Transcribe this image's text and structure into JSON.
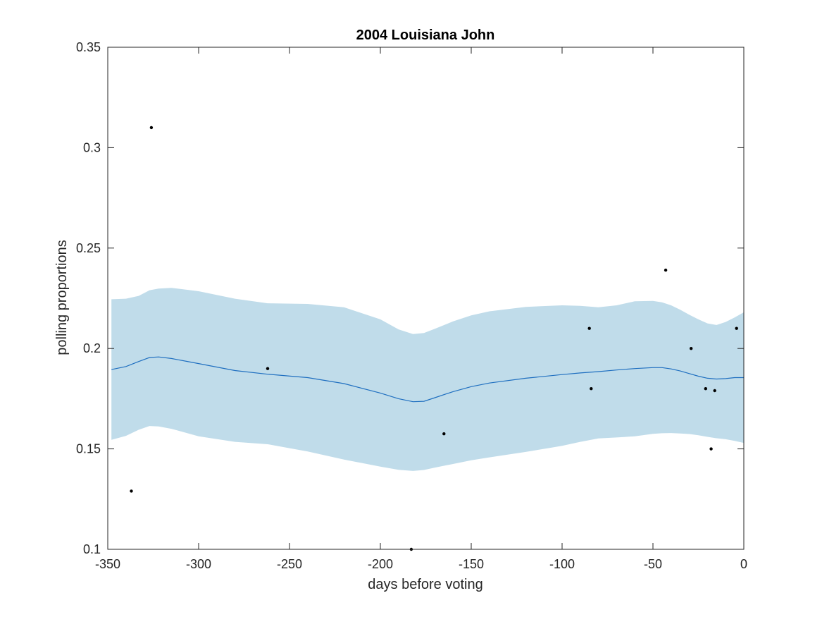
{
  "chart_data": {
    "type": "line",
    "title": "2004 Louisiana John",
    "xlabel": "days before voting",
    "ylabel": "polling proportions",
    "xlim": [
      -350,
      0
    ],
    "ylim": [
      0.1,
      0.35
    ],
    "xticks": [
      "-350",
      "-300",
      "-250",
      "-200",
      "-150",
      "-100",
      "-50",
      "0"
    ],
    "yticks": [
      "0.1",
      "0.15",
      "0.2",
      "0.25",
      "0.3",
      "0.35"
    ],
    "grid": false,
    "colors": {
      "band": "#c0dcea",
      "line": "#1f6fc0",
      "points": "#000000",
      "axis": "#262626"
    },
    "mean_curve": {
      "x": [
        -348,
        -340,
        -333,
        -327,
        -322,
        -315,
        -300,
        -280,
        -262,
        -240,
        -220,
        -200,
        -190,
        -182,
        -176,
        -170,
        -160,
        -150,
        -140,
        -120,
        -100,
        -90,
        -80,
        -70,
        -60,
        -50,
        -45,
        -40,
        -35,
        -30,
        -25,
        -20,
        -15,
        -10,
        -5,
        0
      ],
      "y": [
        0.1895,
        0.191,
        0.1935,
        0.1955,
        0.1958,
        0.195,
        0.1925,
        0.189,
        0.1872,
        0.1855,
        0.1825,
        0.1778,
        0.175,
        0.1735,
        0.1737,
        0.1755,
        0.1785,
        0.181,
        0.1828,
        0.1852,
        0.187,
        0.1878,
        0.1885,
        0.1893,
        0.19,
        0.1905,
        0.1905,
        0.1898,
        0.1888,
        0.1875,
        0.1862,
        0.1852,
        0.1848,
        0.185,
        0.1855,
        0.1855
      ]
    },
    "confidence_band": {
      "x": [
        -348,
        -340,
        -333,
        -327,
        -322,
        -315,
        -300,
        -280,
        -262,
        -240,
        -220,
        -200,
        -190,
        -182,
        -176,
        -170,
        -160,
        -150,
        -140,
        -120,
        -100,
        -90,
        -80,
        -70,
        -60,
        -50,
        -45,
        -40,
        -35,
        -30,
        -25,
        -20,
        -15,
        -10,
        -5,
        0
      ],
      "upper": [
        0.2245,
        0.2248,
        0.2262,
        0.229,
        0.2298,
        0.2302,
        0.2285,
        0.2248,
        0.2225,
        0.2222,
        0.2205,
        0.2145,
        0.2095,
        0.2072,
        0.2077,
        0.2098,
        0.2135,
        0.2165,
        0.2185,
        0.2207,
        0.2215,
        0.2212,
        0.2205,
        0.2215,
        0.2235,
        0.2237,
        0.223,
        0.2215,
        0.2193,
        0.2168,
        0.2145,
        0.2125,
        0.2117,
        0.2132,
        0.2155,
        0.218
      ],
      "lower": [
        0.1545,
        0.1565,
        0.1595,
        0.1614,
        0.1612,
        0.16,
        0.1563,
        0.1535,
        0.1523,
        0.1487,
        0.1447,
        0.1412,
        0.1396,
        0.139,
        0.1395,
        0.1407,
        0.1425,
        0.1443,
        0.1458,
        0.1485,
        0.1515,
        0.1535,
        0.1552,
        0.1557,
        0.1563,
        0.1575,
        0.1578,
        0.1579,
        0.1577,
        0.1574,
        0.1568,
        0.156,
        0.1553,
        0.1548,
        0.154,
        0.153
      ]
    },
    "points": {
      "x": [
        -337,
        -326,
        -262,
        -183,
        -165,
        -85,
        -84,
        -43,
        -29,
        -21,
        -18,
        -16,
        -4
      ],
      "y": [
        0.129,
        0.31,
        0.19,
        0.1,
        0.1575,
        0.21,
        0.18,
        0.239,
        0.2,
        0.18,
        0.15,
        0.179,
        0.21
      ]
    }
  }
}
